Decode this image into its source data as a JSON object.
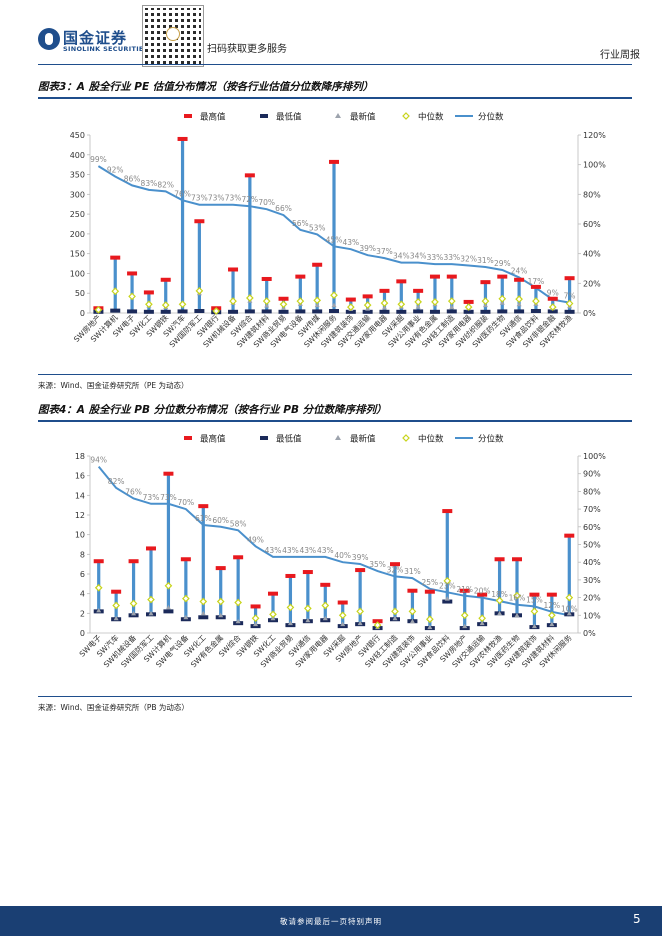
{
  "header": {
    "logo_cn": "国金证券",
    "logo_en": "SINOLINK SECURITIES",
    "qr_caption": "扫码获取更多服务",
    "report_type": "行业周报"
  },
  "figure3": {
    "title": "图表3：A 股全行业 PE 估值分布情况（按各行业估值分位数降序排列）",
    "source": "来源：Wind、国金证券研究所（PE 为动态）"
  },
  "figure4": {
    "title": "图表4：A 股全行业 PB 分位数分布情况（按各行业 PB 分位数降序排列）",
    "source": "来源：Wind、国金证券研究所（PB 为动态）"
  },
  "footer": {
    "disclaimer": "敬请参阅最后一页特别声明",
    "page_number": "5"
  },
  "colors": {
    "max": "#e8191e",
    "min": "#1b2a5a",
    "latest": "#9da3ad",
    "median": "#c8d41a",
    "percentile": "#4a90cc",
    "rangebar": "#4a90cc",
    "footer": "#1a3f73"
  },
  "chart_data": [
    {
      "type": "bar",
      "title": "A 股全行业 PE 估值分布情况",
      "legend": [
        "最高值",
        "最低值",
        "最新值",
        "中位数",
        "分位数"
      ],
      "ylim": [
        0,
        450
      ],
      "yticks": [
        "0",
        "50",
        "100",
        "150",
        "200",
        "250",
        "300",
        "350",
        "400",
        "450"
      ],
      "y2lim": [
        0,
        1.2
      ],
      "y2ticks": [
        "0%",
        "20%",
        "40%",
        "60%",
        "80%",
        "100%",
        "120%"
      ],
      "categories": [
        "SW房地产",
        "SW计算机",
        "SW电子",
        "SW化工",
        "SW钢铁",
        "SW汽车",
        "SW国防军工",
        "SW银行",
        "SW机械设备",
        "SW综合",
        "SW建筑材料",
        "SW商业贸易",
        "SW电气设备",
        "SW传媒",
        "SW休闲服务",
        "SW建筑装饰",
        "SW交通运输",
        "SW家用电器",
        "SW采掘",
        "SW公用事业",
        "SW有色金属",
        "SW轻工制造",
        "SW家用电器",
        "SW纺织服装",
        "SW医药生物",
        "SW通信",
        "SW食品饮料",
        "SW非银金融",
        "SW农林牧渔"
      ],
      "series": [
        {
          "name": "最高值",
          "values": [
            12,
            140,
            100,
            52,
            84,
            440,
            232,
            12,
            110,
            348,
            86,
            36,
            92,
            122,
            382,
            34,
            42,
            56,
            80,
            56,
            92,
            92,
            28,
            78,
            92,
            84,
            66,
            36,
            88
          ]
        },
        {
          "name": "最低值",
          "values": [
            3,
            6,
            4,
            3,
            3,
            4,
            5,
            2,
            3,
            4,
            4,
            3,
            4,
            4,
            5,
            3,
            3,
            3,
            3,
            4,
            3,
            4,
            3,
            3,
            4,
            4,
            5,
            4,
            3
          ]
        },
        {
          "name": "最新值",
          "values": [
            6,
            58,
            44,
            19,
            15,
            26,
            50,
            5,
            26,
            31,
            19,
            13,
            23,
            20,
            20,
            10,
            11,
            14,
            16,
            16,
            22,
            15,
            12,
            20,
            26,
            22,
            23,
            12,
            17
          ]
        },
        {
          "name": "中位数",
          "values": [
            8,
            55,
            42,
            22,
            20,
            22,
            56,
            5,
            30,
            38,
            30,
            22,
            30,
            32,
            45,
            15,
            20,
            25,
            22,
            28,
            28,
            30,
            15,
            30,
            36,
            35,
            30,
            15,
            24
          ]
        },
        {
          "name": "分位数",
          "axis": "right",
          "values": [
            0.99,
            0.92,
            0.86,
            0.83,
            0.82,
            0.76,
            0.73,
            0.73,
            0.73,
            0.72,
            0.7,
            0.66,
            0.56,
            0.53,
            0.45,
            0.43,
            0.39,
            0.37,
            0.34,
            0.34,
            0.33,
            0.33,
            0.32,
            0.31,
            0.29,
            0.24,
            0.17,
            0.09,
            0.07
          ]
        }
      ],
      "percentile_labels": [
        "99%",
        "92%",
        "86%",
        "83%",
        "82%",
        "76%",
        "73%",
        "73%",
        "73%",
        "72%",
        "70%",
        "66%",
        "56%",
        "53%",
        "45%",
        "43%",
        "39%",
        "37%",
        "34%",
        "34%",
        "33%",
        "33%",
        "32%",
        "31%",
        "29%",
        "24%",
        "17%",
        "9%",
        "7%"
      ]
    },
    {
      "type": "bar",
      "title": "A 股全行业 PB 分位数分布情况",
      "legend": [
        "最高值",
        "最低值",
        "最新值",
        "中位数",
        "分位数"
      ],
      "ylim": [
        0,
        18
      ],
      "yticks": [
        "0",
        "2",
        "4",
        "6",
        "8",
        "10",
        "12",
        "14",
        "16",
        "18"
      ],
      "y2lim": [
        0,
        1.0
      ],
      "y2ticks": [
        "0%",
        "10%",
        "20%",
        "30%",
        "40%",
        "50%",
        "60%",
        "70%",
        "80%",
        "90%",
        "100%"
      ],
      "categories": [
        "SW电子",
        "SW汽车",
        "SW机械设备",
        "SW国防军工",
        "SW计算机",
        "SW电气设备",
        "SW化工",
        "SW有色金属",
        "SW综合",
        "SW钢铁",
        "SW化工",
        "SW商业贸易",
        "SW通信",
        "SW家用电器",
        "SW采掘",
        "SW房地产",
        "SW银行",
        "SW轻工制造",
        "SW建筑装饰",
        "SW公用事业",
        "SW食品饮料",
        "SW房地产",
        "SW交通运输",
        "SW农林牧渔",
        "SW医药生物",
        "SW建筑装饰",
        "SW建筑材料",
        "SW休闲服务"
      ],
      "series": [
        {
          "name": "最高值",
          "values": [
            7.3,
            4.2,
            7.3,
            8.6,
            16.2,
            7.5,
            12.9,
            6.6,
            7.7,
            2.7,
            4.0,
            5.8,
            6.2,
            4.9,
            3.1,
            6.4,
            1.2,
            7.0,
            4.3,
            4.2,
            12.4,
            4.3,
            3.9,
            7.5,
            7.5,
            3.9,
            3.9,
            9.9
          ]
        },
        {
          "name": "最低值",
          "values": [
            2.2,
            1.4,
            1.8,
            1.9,
            2.2,
            1.4,
            1.6,
            1.6,
            1.0,
            0.7,
            1.3,
            0.8,
            1.2,
            1.3,
            0.7,
            0.9,
            0.5,
            1.4,
            1.2,
            0.5,
            3.2,
            0.5,
            0.9,
            2.0,
            1.8,
            0.6,
            0.8,
            1.9
          ]
        },
        {
          "name": "最新值",
          "values": [
            2.3,
            1.5,
            2.0,
            2.0,
            2.6,
            1.6,
            2.0,
            1.8,
            1.2,
            0.9,
            1.5,
            1.0,
            1.3,
            1.5,
            0.9,
            1.0,
            0.6,
            1.5,
            1.2,
            0.6,
            3.5,
            0.7,
            1.0,
            2.0,
            1.8,
            0.7,
            0.9,
            2.0
          ]
        },
        {
          "name": "中位数",
          "values": [
            4.6,
            2.8,
            3.0,
            3.4,
            4.8,
            3.5,
            3.2,
            3.2,
            3.1,
            1.5,
            1.9,
            2.6,
            2.5,
            2.8,
            1.8,
            2.2,
            0.8,
            2.2,
            2.2,
            1.4,
            5.3,
            1.8,
            1.5,
            3.3,
            3.8,
            2.2,
            1.8,
            3.6
          ]
        },
        {
          "name": "分位数",
          "axis": "right",
          "values": [
            0.94,
            0.82,
            0.76,
            0.73,
            0.73,
            0.7,
            0.61,
            0.6,
            0.58,
            0.49,
            0.43,
            0.43,
            0.43,
            0.43,
            0.4,
            0.39,
            0.35,
            0.32,
            0.31,
            0.25,
            0.23,
            0.21,
            0.2,
            0.18,
            0.16,
            0.15,
            0.12,
            0.1
          ]
        }
      ],
      "percentile_labels": [
        "94%",
        "82%",
        "76%",
        "73%",
        "73%",
        "70%",
        "61%",
        "60%",
        "58%",
        "49%",
        "43%",
        "43%",
        "43%",
        "43%",
        "40%",
        "39%",
        "35%",
        "32%",
        "31%",
        "25%",
        "23%",
        "21%",
        "20%",
        "18%",
        "16%",
        "15%",
        "12%",
        "10%"
      ]
    }
  ]
}
